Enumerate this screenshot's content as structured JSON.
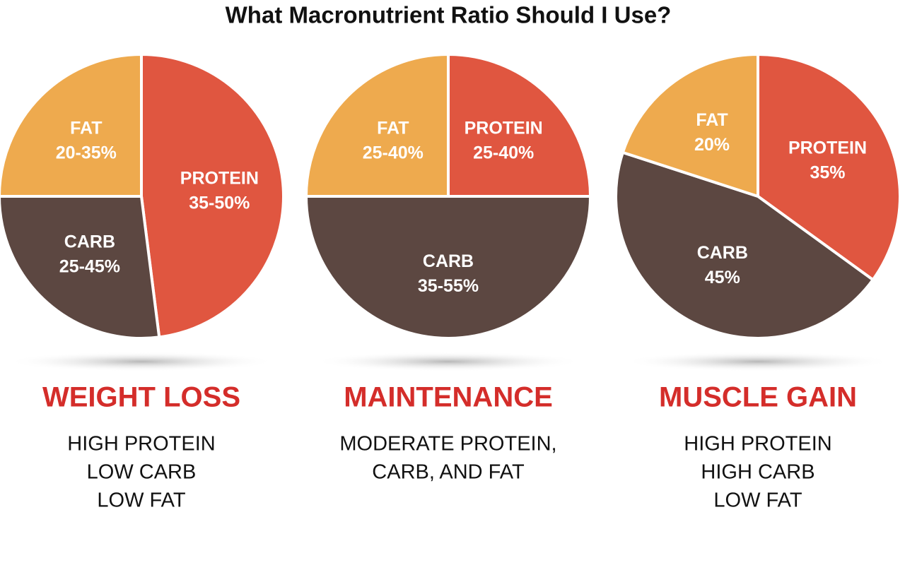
{
  "title": "What Macronutrient Ratio Should I Use?",
  "chart_data": [
    {
      "type": "pie",
      "title": "WEIGHT LOSS",
      "description": [
        "HIGH PROTEIN",
        "LOW CARB",
        "LOW FAT"
      ],
      "categories": [
        "PROTEIN",
        "CARB",
        "FAT"
      ],
      "values": [
        48,
        27,
        25
      ],
      "value_labels": [
        "35-50%",
        "25-45%",
        "20-35%"
      ],
      "colors": [
        "#e05640",
        "#5c4741",
        "#eeaa4e"
      ]
    },
    {
      "type": "pie",
      "title": "MAINTENANCE",
      "description": [
        "MODERATE PROTEIN,",
        "CARB, AND FAT"
      ],
      "categories": [
        "PROTEIN",
        "CARB",
        "FAT"
      ],
      "values": [
        25,
        50,
        25
      ],
      "value_labels": [
        "25-40%",
        "35-55%",
        "25-40%"
      ],
      "colors": [
        "#e05640",
        "#5c4741",
        "#eeaa4e"
      ]
    },
    {
      "type": "pie",
      "title": "MUSCLE GAIN",
      "description": [
        "HIGH PROTEIN",
        "HIGH CARB",
        "LOW FAT"
      ],
      "categories": [
        "PROTEIN",
        "CARB",
        "FAT"
      ],
      "values": [
        35,
        45,
        20
      ],
      "value_labels": [
        "35%",
        "45%",
        "20%"
      ],
      "colors": [
        "#e05640",
        "#5c4741",
        "#eeaa4e"
      ]
    }
  ]
}
